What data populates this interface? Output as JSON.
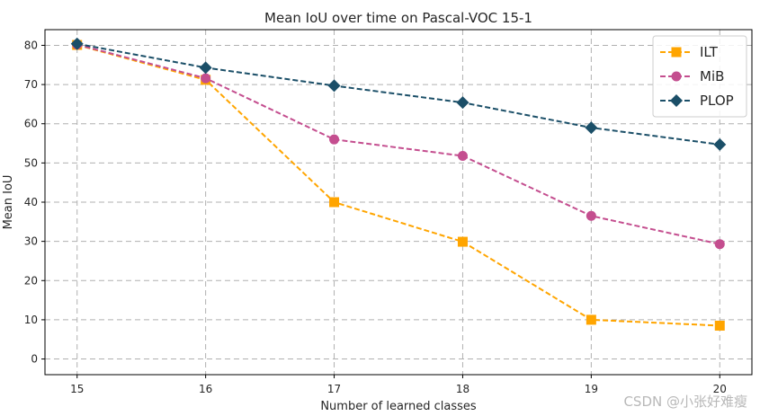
{
  "chart_data": {
    "type": "line",
    "title": "Mean IoU over time on Pascal-VOC 15-1",
    "xlabel": "Number of learned classes",
    "ylabel": "Mean IoU",
    "x": [
      15,
      16,
      17,
      18,
      19,
      20
    ],
    "xlim": [
      14.75,
      20.25
    ],
    "ylim": [
      -4,
      84
    ],
    "yticks": [
      0,
      10,
      20,
      30,
      40,
      50,
      60,
      70,
      80
    ],
    "grid": true,
    "legend_position": "top-right",
    "series": [
      {
        "name": "ILT",
        "values": [
          80.1,
          71.2,
          40.0,
          29.9,
          10.0,
          8.5
        ],
        "color": "#ffa500",
        "marker": "square"
      },
      {
        "name": "MiB",
        "values": [
          80.2,
          71.6,
          56.0,
          51.8,
          36.5,
          29.3
        ],
        "color": "#c44e8f",
        "marker": "circle"
      },
      {
        "name": "PLOP",
        "values": [
          80.4,
          74.3,
          69.7,
          65.4,
          59.0,
          54.7
        ],
        "color": "#1b4f68",
        "marker": "diamond"
      }
    ]
  },
  "watermark": "CSDN @小张好难瘦"
}
